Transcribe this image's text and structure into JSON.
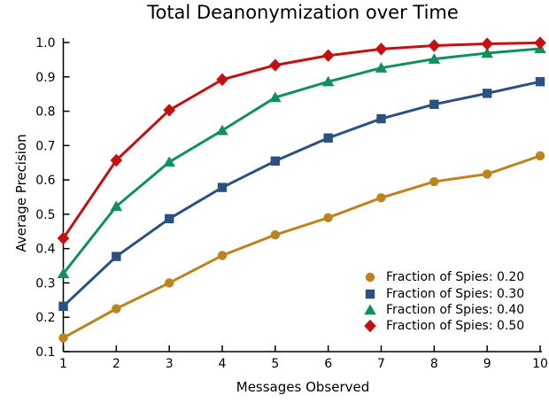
{
  "title": "Total Deanonymization over Time",
  "chart_data": {
    "type": "line",
    "title": "Total Deanonymization over Time",
    "xlabel": "Messages Observed",
    "ylabel": "Average Precision",
    "xlim": [
      1,
      10
    ],
    "ylim": [
      0.1,
      1.0
    ],
    "grid": false,
    "legend_position": "lower right",
    "x": [
      1,
      2,
      3,
      4,
      5,
      6,
      7,
      8,
      9,
      10
    ],
    "x_tick_labels": [
      "1",
      "2",
      "3",
      "4",
      "5",
      "6",
      "7",
      "8",
      "9",
      "10"
    ],
    "y_ticks": [
      0.1,
      0.2,
      0.3,
      0.4,
      0.5,
      0.6,
      0.7,
      0.8,
      0.9,
      1.0
    ],
    "y_tick_labels": [
      "0.1",
      "0.2",
      "0.3",
      "0.4",
      "0.5",
      "0.6",
      "0.7",
      "0.8",
      "0.9",
      "1.0"
    ],
    "series": [
      {
        "name": "Fraction of Spies: 0.20",
        "marker": "circle",
        "color": "#BD831C",
        "values": [
          0.14,
          0.225,
          0.3,
          0.38,
          0.44,
          0.49,
          0.548,
          0.595,
          0.617,
          0.67
        ]
      },
      {
        "name": "Fraction of Spies: 0.30",
        "marker": "square",
        "color": "#2C5181",
        "values": [
          0.232,
          0.377,
          0.487,
          0.578,
          0.655,
          0.722,
          0.778,
          0.82,
          0.852,
          0.886
        ]
      },
      {
        "name": "Fraction of Spies: 0.40",
        "marker": "triangle",
        "color": "#10905F",
        "values": [
          0.327,
          0.523,
          0.652,
          0.744,
          0.84,
          0.886,
          0.926,
          0.952,
          0.969,
          0.982
        ]
      },
      {
        "name": "Fraction of Spies: 0.50",
        "marker": "diamond",
        "color": "#C41010",
        "values": [
          0.43,
          0.657,
          0.803,
          0.892,
          0.934,
          0.962,
          0.981,
          0.991,
          0.996,
          0.999
        ]
      }
    ]
  }
}
